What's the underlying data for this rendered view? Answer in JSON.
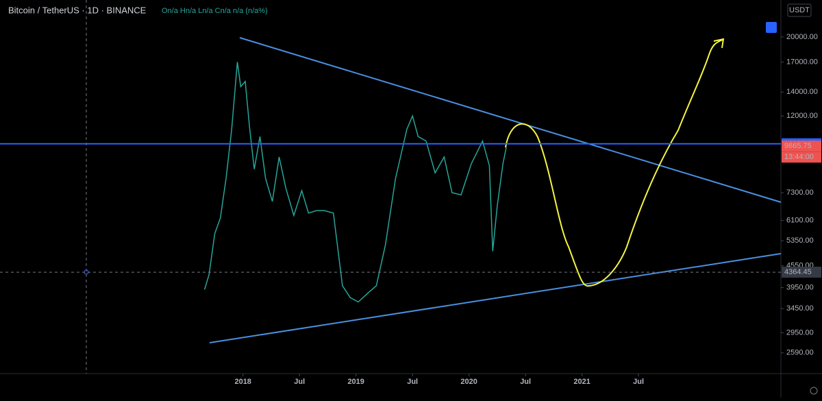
{
  "header": {
    "symbol": "Bitcoin / TetherUS · 1D · BINANCE",
    "ohlc": "On/a Hn/a Ln/a Cn/a n/a (n/a%)",
    "currency": "USDT"
  },
  "chart_data": {
    "type": "line",
    "log_scale": true,
    "x": [
      2017.66,
      2017.7,
      2017.75,
      2017.8,
      2017.85,
      2017.9,
      2017.95,
      2017.98,
      2018.02,
      2018.06,
      2018.1,
      2018.15,
      2018.2,
      2018.26,
      2018.32,
      2018.38,
      2018.45,
      2018.52,
      2018.58,
      2018.65,
      2018.72,
      2018.8,
      2018.88,
      2018.95,
      2019.02,
      2019.1,
      2019.18,
      2019.26,
      2019.35,
      2019.45,
      2019.5,
      2019.55,
      2019.62,
      2019.7,
      2019.78,
      2019.85,
      2019.93,
      2020.02,
      2020.12,
      2020.18,
      2020.21,
      2020.25,
      2020.3,
      2020.33
    ],
    "series": [
      {
        "name": "BTCUSDT",
        "color": "#26a69a",
        "values": [
          3900,
          4300,
          5600,
          6200,
          8000,
          11000,
          17000,
          14500,
          15000,
          11000,
          8500,
          10500,
          8000,
          6900,
          9200,
          7500,
          6300,
          7400,
          6400,
          6500,
          6500,
          6400,
          4000,
          3700,
          3600,
          3800,
          4000,
          5200,
          8000,
          11000,
          12000,
          10500,
          10200,
          8300,
          9200,
          7300,
          7200,
          8800,
          10200,
          8700,
          5000,
          6700,
          8800,
          9800
        ]
      }
    ],
    "xlim": [
      2015.85,
      2022.76
    ],
    "xticks": [
      {
        "value": 2018,
        "label": "2018"
      },
      {
        "value": 2018.5,
        "label": "Jul"
      },
      {
        "value": 2019,
        "label": "2019"
      },
      {
        "value": 2019.5,
        "label": "Jul"
      },
      {
        "value": 2020,
        "label": "2020"
      },
      {
        "value": 2020.5,
        "label": "Jul"
      },
      {
        "value": 2021,
        "label": "2021"
      },
      {
        "value": 2021.5,
        "label": "Jul"
      }
    ],
    "ylim": [
      2265,
      25400
    ],
    "yticks": [
      {
        "value": 20000,
        "label": "20000.00"
      },
      {
        "value": 17000,
        "label": "17000.00"
      },
      {
        "value": 14000,
        "label": "14000.00"
      },
      {
        "value": 12000,
        "label": "12000.00"
      },
      {
        "value": 7300,
        "label": "7300.00"
      },
      {
        "value": 6100,
        "label": "6100.00"
      },
      {
        "value": 5350,
        "label": "5350.00"
      },
      {
        "value": 4550,
        "label": "4550.00"
      },
      {
        "value": 3950,
        "label": "3950.00"
      },
      {
        "value": 3450,
        "label": "3450.00"
      },
      {
        "value": 2950,
        "label": "2950.00"
      },
      {
        "value": 2590,
        "label": "2590.00"
      }
    ],
    "price_lines": [
      {
        "value": 10020,
        "label": "10020.00",
        "color": "#2962ff"
      },
      {
        "value": 9865.75,
        "label": "9865.75",
        "color": "#ef5350"
      },
      {
        "value": 4364.45,
        "label": "4364.45",
        "color": "#363a45"
      }
    ],
    "countdown": "13:44:00"
  }
}
